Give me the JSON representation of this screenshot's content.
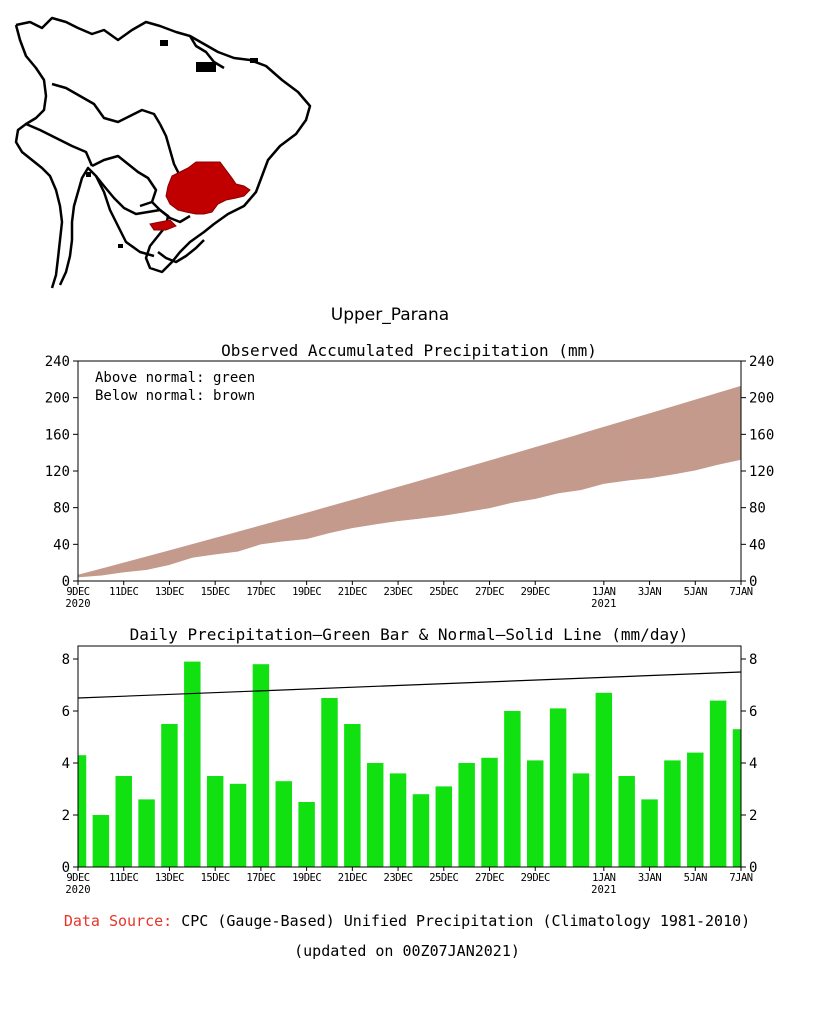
{
  "region_title": "Upper_Parana",
  "colors": {
    "region_fill": "#c00000",
    "accum_fill": "#c49a8c",
    "daily_bar": "#11e011",
    "normal_line": "#000000",
    "source_label": "#e8352a"
  },
  "x_tick_labels": [
    {
      "day": 0,
      "label": "9DEC",
      "sub": "2020"
    },
    {
      "day": 2,
      "label": "11DEC",
      "sub": ""
    },
    {
      "day": 4,
      "label": "13DEC",
      "sub": ""
    },
    {
      "day": 6,
      "label": "15DEC",
      "sub": ""
    },
    {
      "day": 8,
      "label": "17DEC",
      "sub": ""
    },
    {
      "day": 10,
      "label": "19DEC",
      "sub": ""
    },
    {
      "day": 12,
      "label": "21DEC",
      "sub": ""
    },
    {
      "day": 14,
      "label": "23DEC",
      "sub": ""
    },
    {
      "day": 16,
      "label": "25DEC",
      "sub": ""
    },
    {
      "day": 18,
      "label": "27DEC",
      "sub": ""
    },
    {
      "day": 20,
      "label": "29DEC",
      "sub": ""
    },
    {
      "day": 23,
      "label": "1JAN",
      "sub": "2021"
    },
    {
      "day": 25,
      "label": "3JAN",
      "sub": ""
    },
    {
      "day": 27,
      "label": "5JAN",
      "sub": ""
    },
    {
      "day": 29,
      "label": "7JAN",
      "sub": ""
    }
  ],
  "chart_data": [
    {
      "type": "area",
      "title": "Observed Accumulated Precipitation (mm)",
      "annotations": [
        "Above normal: green",
        "Below normal: brown"
      ],
      "xlim": [
        "9DEC2020",
        "7JAN2021"
      ],
      "ylim": [
        0,
        240
      ],
      "yticks": [
        0,
        40,
        80,
        120,
        160,
        200,
        240
      ],
      "series": [
        {
          "name": "Normal",
          "values": [
            6.5,
            13.1,
            19.7,
            26.4,
            33.1,
            39.9,
            46.7,
            53.5,
            60.4,
            67.3,
            74.2,
            81.2,
            88.2,
            95.3,
            102.4,
            109.5,
            116.7,
            123.9,
            131.1,
            138.4,
            145.7,
            153.0,
            160.4,
            167.8,
            175.2,
            182.6,
            190.1,
            197.6,
            205.1,
            212.6
          ]
        },
        {
          "name": "Observed",
          "values": [
            4.3,
            6.3,
            9.8,
            12.4,
            17.9,
            25.8,
            29.3,
            32.5,
            40.3,
            43.6,
            46.1,
            52.6,
            58.1,
            62.1,
            65.7,
            68.5,
            71.6,
            75.6,
            79.8,
            85.8,
            89.9,
            96.0,
            99.6,
            106.3,
            109.8,
            112.4,
            116.5,
            120.9,
            127.2,
            132.5
          ]
        }
      ]
    },
    {
      "type": "bar",
      "title": "Daily Precipitation—Green Bar & Normal—Solid Line (mm/day)",
      "xlim": [
        "9DEC2020",
        "7JAN2021"
      ],
      "ylim": [
        0,
        8.5
      ],
      "yticks": [
        0,
        2,
        4,
        6,
        8
      ],
      "series": [
        {
          "name": "Daily Precipitation",
          "values": [
            4.3,
            2.0,
            3.5,
            2.6,
            5.5,
            7.9,
            3.5,
            3.2,
            7.8,
            3.3,
            2.5,
            6.5,
            5.5,
            4.0,
            3.6,
            2.8,
            3.1,
            4.0,
            4.2,
            6.0,
            4.1,
            6.1,
            3.6,
            6.7,
            3.5,
            2.6,
            4.1,
            4.4,
            6.4,
            5.3
          ]
        },
        {
          "name": "Normal",
          "values": [
            6.5,
            7.5
          ]
        }
      ]
    }
  ],
  "footer": {
    "source_label": "Data Source:",
    "source_text": "CPC (Gauge-Based) Unified Precipitation (Climatology 1981-2010)",
    "updated": "(updated on 00Z07JAN2021)"
  }
}
